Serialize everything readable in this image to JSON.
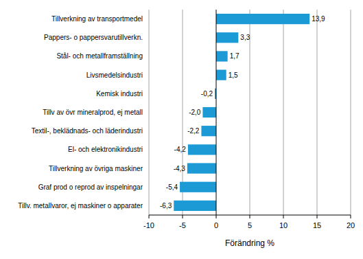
{
  "chart_data": {
    "type": "bar",
    "orientation": "horizontal",
    "x_label": "Förändring %",
    "categories": [
      "Tillverkning av transportmedel",
      "Pappers- o pappersvarutillverkn.",
      "Stål- och metallframställning",
      "Livsmedelsindustri",
      "Kemisk industri",
      "Tillv av övr mineralprod, ej metall",
      "Textil-, beklädnads- och läderindustri",
      "El- och elektronikindustri",
      "Tillverkning av övriga maskiner",
      "Graf prod o reprod av inspelningar",
      "Tillv. metallvaror, ej maskiner o apparater"
    ],
    "values": [
      13.9,
      3.3,
      1.7,
      1.5,
      -0.2,
      -2.0,
      -2.2,
      -4.2,
      -4.3,
      -5.4,
      -6.3
    ],
    "value_labels": [
      "13,9",
      "3,3",
      "1,7",
      "1,5",
      "-0,2",
      "-2,0",
      "-2,2",
      "-4,2",
      "-4,3",
      "-5,4",
      "-6,3"
    ],
    "color": "#1b9ad6",
    "xlim": [
      -10,
      20
    ],
    "xticks": [
      -10,
      -5,
      0,
      5,
      10,
      15,
      20
    ],
    "grid": true,
    "data_labels": true
  }
}
